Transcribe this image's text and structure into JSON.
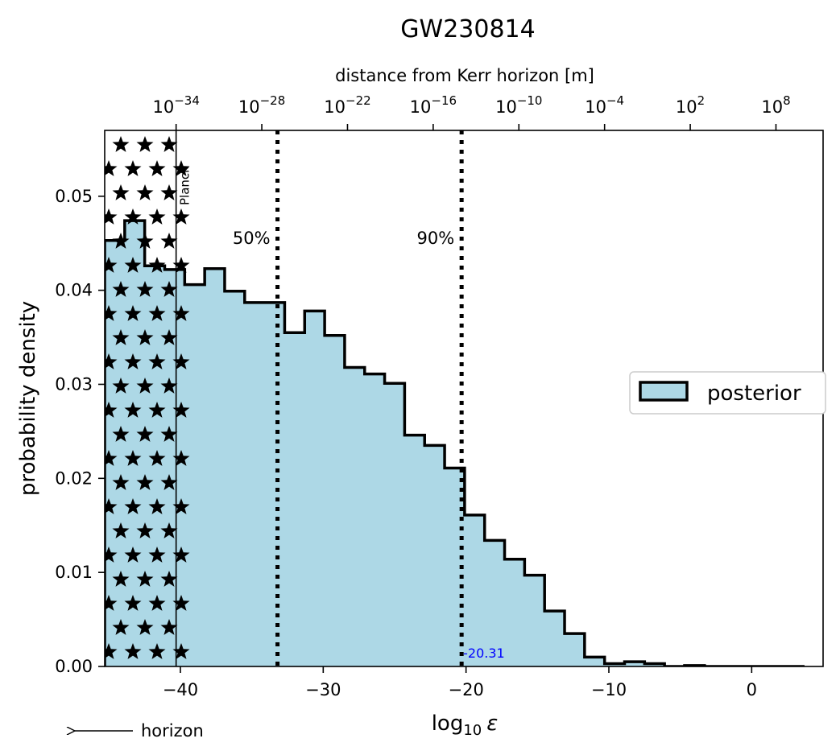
{
  "chart_data": {
    "type": "histogram",
    "title": "GW230814",
    "xlabel_base": "log",
    "xlabel_sub": "10",
    "xlabel_var": "ε",
    "ylabel": "probability density",
    "top_xlabel": "distance from Kerr horizon [m]",
    "xlim": [
      -45.3,
      5.0
    ],
    "ylim": [
      0.0,
      0.057
    ],
    "x_ticks": [
      -40,
      -30,
      -20,
      -10,
      0
    ],
    "x_tick_labels": [
      "−40",
      "−30",
      "−20",
      "−10",
      "0"
    ],
    "y_ticks": [
      0.0,
      0.01,
      0.02,
      0.03,
      0.04,
      0.05
    ],
    "y_tick_labels": [
      "0.00",
      "0.01",
      "0.02",
      "0.03",
      "0.04",
      "0.05"
    ],
    "top_ticks": [
      {
        "base": "10",
        "exp": "−34",
        "x": -40.3
      },
      {
        "base": "10",
        "exp": "−28",
        "x": -34.3
      },
      {
        "base": "10",
        "exp": "−22",
        "x": -28.3
      },
      {
        "base": "10",
        "exp": "−16",
        "x": -22.3
      },
      {
        "base": "10",
        "exp": "−10",
        "x": -16.3
      },
      {
        "base": "10",
        "exp": "−4",
        "x": -10.3
      },
      {
        "base": "10",
        "exp": "2",
        "x": -4.3
      },
      {
        "base": "10",
        "exp": "8",
        "x": 1.7
      }
    ],
    "bin_edges": [
      -45.3,
      -43.9,
      -42.5,
      -41.1,
      -39.7,
      -38.3,
      -36.9,
      -35.5,
      -34.1,
      -32.7,
      -31.3,
      -29.9,
      -28.5,
      -27.1,
      -25.7,
      -24.3,
      -22.9,
      -21.5,
      -20.1,
      -18.7,
      -17.3,
      -15.9,
      -14.5,
      -13.1,
      -11.7,
      -10.3,
      -8.9,
      -7.5,
      -6.1,
      -4.7,
      -3.3,
      -1.9,
      -0.5,
      0.9,
      2.3,
      3.7
    ],
    "densities": [
      0.0453,
      0.0474,
      0.0426,
      0.0422,
      0.0406,
      0.0423,
      0.0399,
      0.0387,
      0.0387,
      0.0355,
      0.0378,
      0.0352,
      0.0318,
      0.0311,
      0.0301,
      0.0246,
      0.0235,
      0.0211,
      0.0161,
      0.0134,
      0.0114,
      0.0097,
      0.0059,
      0.0035,
      0.001,
      0.0003,
      0.0005,
      0.0003,
      0.0,
      0.0001,
      0.0,
      0.0,
      0.0,
      0.0,
      0.0
    ],
    "fill_color": "#add8e6",
    "quantile_lines": [
      {
        "label": "50%",
        "x": -33.2
      },
      {
        "label": "90%",
        "x": -20.31
      }
    ],
    "quantile_value_text": "-20.31",
    "quantile_value_color": "#0000ff",
    "planck_region": {
      "label": "Planck",
      "x_max": -40.3,
      "hatch": "stars"
    },
    "legend": {
      "label": "posterior",
      "placement": "center-right"
    },
    "horizon_label": "horizon",
    "grid": false
  }
}
